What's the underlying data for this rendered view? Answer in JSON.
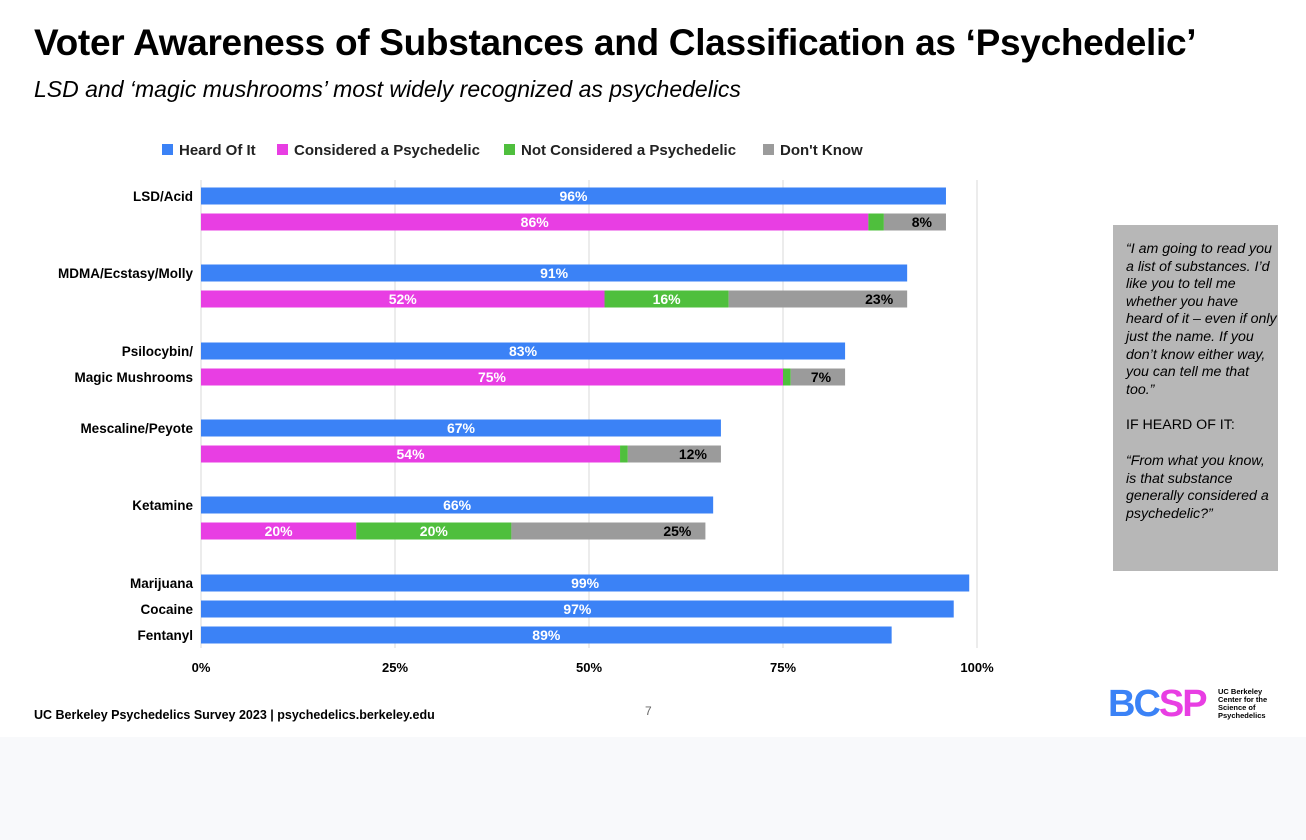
{
  "slide": {
    "title": "Voter Awareness of Substances and Classification as ‘Psychedelic’",
    "subtitle": "LSD and ‘magic mushrooms’ most widely recognized as psychedelics",
    "footer": "UC Berkeley Psychedelics Survey 2023 | psychedelics.berkeley.edu",
    "page_number": "7",
    "logo": {
      "letters": [
        "B",
        "C",
        "S",
        "P"
      ],
      "tagline": "UC Berkeley Center for the Science of Psychedelics"
    },
    "question_box": {
      "question": "“I am going to read you a list of substances. I’d like you to tell me whether you have heard of it – even if only just the name. If you don’t know either way, you can tell me that too.”",
      "condition": "IF HEARD OF IT:",
      "follow_up": "“From what you know, is that substance generally considered a psychedelic?”"
    }
  },
  "colors": {
    "heard": "#3b82f6",
    "psychedelic": "#e83ee3",
    "not_psychedelic": "#4fbf3d",
    "dont_know": "#9b9b9b"
  },
  "chart_data": {
    "type": "bar",
    "orientation": "horizontal",
    "stacked": true,
    "title": "",
    "xlim": [
      0,
      100
    ],
    "x_ticks": [
      "0%",
      "25%",
      "50%",
      "75%",
      "100%"
    ],
    "grid": true,
    "legend_position": "top",
    "legend": [
      "Heard Of It",
      "Considered a Psychedelic",
      "Not Considered a Psychedelic",
      "Don't Know"
    ],
    "category_labels": [
      {
        "text": "LSD/Acid",
        "row": 0
      },
      {
        "text": "MDMA/Ecstasy/Molly",
        "row": 2
      },
      {
        "text": "Psilocybin/",
        "row": 4
      },
      {
        "text": "Magic Mushrooms",
        "row": 5
      },
      {
        "text": "Mescaline/Peyote",
        "row": 6
      },
      {
        "text": "Ketamine",
        "row": 8
      },
      {
        "text": "Marijuana",
        "row": 10
      },
      {
        "text": "Cocaine",
        "row": 11
      },
      {
        "text": "Fentanyl",
        "row": 12
      }
    ],
    "rows": [
      {
        "substance": "LSD/Acid",
        "kind": "heard",
        "segments": [
          {
            "series": "heard",
            "value": 96,
            "label": "96%"
          }
        ]
      },
      {
        "substance": "LSD/Acid",
        "kind": "classification",
        "segments": [
          {
            "series": "psychedelic",
            "value": 86,
            "label": "86%"
          },
          {
            "series": "not_psychedelic",
            "value": 2,
            "label": ""
          },
          {
            "series": "dont_know",
            "value": 8,
            "label": "8%"
          }
        ]
      },
      {
        "substance": "MDMA/Ecstasy/Molly",
        "kind": "heard",
        "segments": [
          {
            "series": "heard",
            "value": 91,
            "label": "91%"
          }
        ]
      },
      {
        "substance": "MDMA/Ecstasy/Molly",
        "kind": "classification",
        "segments": [
          {
            "series": "psychedelic",
            "value": 52,
            "label": "52%"
          },
          {
            "series": "not_psychedelic",
            "value": 16,
            "label": "16%"
          },
          {
            "series": "dont_know",
            "value": 23,
            "label": "23%"
          }
        ]
      },
      {
        "substance": "Psilocybin/Magic Mushrooms",
        "kind": "heard",
        "segments": [
          {
            "series": "heard",
            "value": 83,
            "label": "83%"
          }
        ]
      },
      {
        "substance": "Psilocybin/Magic Mushrooms",
        "kind": "classification",
        "segments": [
          {
            "series": "psychedelic",
            "value": 75,
            "label": "75%"
          },
          {
            "series": "not_psychedelic",
            "value": 1,
            "label": ""
          },
          {
            "series": "dont_know",
            "value": 7,
            "label": "7%"
          }
        ]
      },
      {
        "substance": "Mescaline/Peyote",
        "kind": "heard",
        "segments": [
          {
            "series": "heard",
            "value": 67,
            "label": "67%"
          }
        ]
      },
      {
        "substance": "Mescaline/Peyote",
        "kind": "classification",
        "segments": [
          {
            "series": "psychedelic",
            "value": 54,
            "label": "54%"
          },
          {
            "series": "not_psychedelic",
            "value": 1,
            "label": ""
          },
          {
            "series": "dont_know",
            "value": 12,
            "label": "12%"
          }
        ]
      },
      {
        "substance": "Ketamine",
        "kind": "heard",
        "segments": [
          {
            "series": "heard",
            "value": 66,
            "label": "66%"
          }
        ]
      },
      {
        "substance": "Ketamine",
        "kind": "classification",
        "segments": [
          {
            "series": "psychedelic",
            "value": 20,
            "label": "20%"
          },
          {
            "series": "not_psychedelic",
            "value": 20,
            "label": "20%"
          },
          {
            "series": "dont_know",
            "value": 25,
            "label": "25%"
          }
        ]
      },
      {
        "substance": "Marijuana",
        "kind": "heard",
        "segments": [
          {
            "series": "heard",
            "value": 99,
            "label": "99%"
          }
        ]
      },
      {
        "substance": "Cocaine",
        "kind": "heard",
        "segments": [
          {
            "series": "heard",
            "value": 97,
            "label": "97%"
          }
        ]
      },
      {
        "substance": "Fentanyl",
        "kind": "heard",
        "segments": [
          {
            "series": "heard",
            "value": 89,
            "label": "89%"
          }
        ]
      }
    ]
  }
}
